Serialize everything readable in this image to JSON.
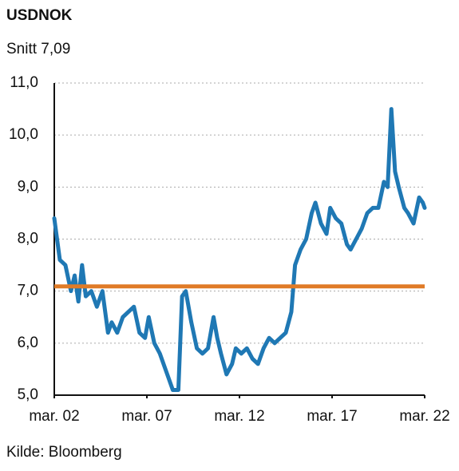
{
  "chart_data": {
    "type": "line",
    "title": "USDNOK",
    "subtitle": "Snitt 7,09",
    "source": "Kilde: Bloomberg",
    "x": [
      2002.0,
      2002.3,
      2002.6,
      2002.9,
      2003.1,
      2003.3,
      2003.5,
      2003.7,
      2004.0,
      2004.3,
      2004.6,
      2004.9,
      2005.1,
      2005.4,
      2005.7,
      2006.0,
      2006.3,
      2006.6,
      2006.9,
      2007.1,
      2007.4,
      2007.7,
      2008.0,
      2008.2,
      2008.4,
      2008.7,
      2008.9,
      2009.1,
      2009.4,
      2009.7,
      2010.0,
      2010.3,
      2010.6,
      2010.8,
      2011.0,
      2011.3,
      2011.6,
      2011.8,
      2012.1,
      2012.4,
      2012.7,
      2013.0,
      2013.3,
      2013.6,
      2013.9,
      2014.2,
      2014.5,
      2014.8,
      2015.0,
      2015.3,
      2015.6,
      2015.9,
      2016.1,
      2016.4,
      2016.7,
      2016.9,
      2017.2,
      2017.5,
      2017.8,
      2018.0,
      2018.3,
      2018.6,
      2018.9,
      2019.2,
      2019.5,
      2019.8,
      2020.0,
      2020.2,
      2020.4,
      2020.6,
      2020.9,
      2021.1,
      2021.4,
      2021.7,
      2021.9,
      2022.0
    ],
    "series": [
      {
        "name": "USDNOK",
        "color": "#1f78b4",
        "values": [
          8.4,
          7.6,
          7.5,
          7.0,
          7.3,
          6.8,
          7.5,
          6.9,
          7.0,
          6.7,
          7.0,
          6.2,
          6.4,
          6.2,
          6.5,
          6.6,
          6.7,
          6.2,
          6.1,
          6.5,
          6.0,
          5.8,
          5.5,
          5.3,
          5.1,
          5.1,
          6.9,
          7.0,
          6.4,
          5.9,
          5.8,
          5.9,
          6.5,
          6.1,
          5.8,
          5.4,
          5.6,
          5.9,
          5.8,
          5.9,
          5.7,
          5.6,
          5.9,
          6.1,
          6.0,
          6.1,
          6.2,
          6.6,
          7.5,
          7.8,
          8.0,
          8.5,
          8.7,
          8.3,
          8.1,
          8.6,
          8.4,
          8.3,
          7.9,
          7.8,
          8.0,
          8.2,
          8.5,
          8.6,
          8.6,
          9.1,
          9.0,
          10.5,
          9.3,
          9.0,
          8.6,
          8.5,
          8.3,
          8.8,
          8.7,
          8.6
        ]
      }
    ],
    "reference_line": {
      "value": 7.09,
      "color": "#e07b27"
    },
    "xlim": [
      2002,
      2022
    ],
    "xticks": [
      {
        "value": 2002,
        "label": "mar. 02"
      },
      {
        "value": 2007,
        "label": "mar. 07"
      },
      {
        "value": 2012,
        "label": "mar. 12"
      },
      {
        "value": 2017,
        "label": "mar. 17"
      },
      {
        "value": 2022,
        "label": "mar. 22"
      }
    ],
    "ylim": [
      5,
      11
    ],
    "yticks": [
      {
        "value": 5,
        "label": "5,0"
      },
      {
        "value": 6,
        "label": "6,0"
      },
      {
        "value": 7,
        "label": "7,0"
      },
      {
        "value": 8,
        "label": "8,0"
      },
      {
        "value": 9,
        "label": "9,0"
      },
      {
        "value": 10,
        "label": "10,0"
      },
      {
        "value": 11,
        "label": "11,0"
      }
    ],
    "grid": true
  }
}
